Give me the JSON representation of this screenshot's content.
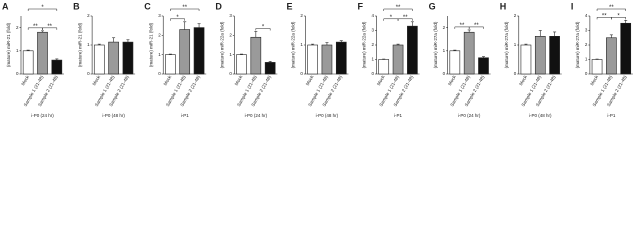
{
  "chart_data": [
    {
      "type": "bar",
      "panel": "A",
      "ylabel": "(mature) miR-21 (fold)",
      "xlabel": "i-P0 (24 hr)",
      "categories": [
        "Mock",
        "Sample 1 (21-48)",
        "Sample 2 (21-48)"
      ],
      "values": [
        1,
        1.8,
        0.6
      ],
      "errors": [
        0.03,
        0.06,
        0.05
      ],
      "colors": [
        "#ffffff",
        "#9a9a9a",
        "#111111"
      ],
      "ylim": [
        0,
        2.5
      ],
      "yticks": [
        0,
        1,
        2
      ],
      "annotations": [
        {
          "text": "*",
          "pair": [
            0,
            2
          ]
        },
        {
          "text": "**",
          "pair": [
            0,
            1
          ]
        },
        {
          "text": "**",
          "pair": [
            1,
            2
          ]
        }
      ]
    },
    {
      "type": "bar",
      "panel": "B",
      "ylabel": "(mature) miR-21 (fold)",
      "xlabel": "i-P0 (48 hr)",
      "categories": [
        "Mock",
        "Sample 1 (21-48)",
        "Sample 2 (21-48)"
      ],
      "values": [
        1,
        1.1,
        1.1
      ],
      "errors": [
        0.03,
        0.15,
        0.08
      ],
      "colors": [
        "#ffffff",
        "#9a9a9a",
        "#111111"
      ],
      "ylim": [
        0,
        2
      ],
      "yticks": [
        0,
        1,
        2
      ],
      "annotations": []
    },
    {
      "type": "bar",
      "panel": "C",
      "ylabel": "(mature) miR-21 (fold)",
      "xlabel": "i-P1",
      "categories": [
        "Mock",
        "Sample 1 (21-48)",
        "Sample 2 (21-48)"
      ],
      "values": [
        1,
        2.3,
        2.4
      ],
      "errors": [
        0.03,
        0.4,
        0.2
      ],
      "colors": [
        "#ffffff",
        "#9a9a9a",
        "#111111"
      ],
      "ylim": [
        0,
        3
      ],
      "yticks": [
        0,
        1,
        2,
        3
      ],
      "annotations": [
        {
          "text": "**",
          "pair": [
            0,
            2
          ]
        },
        {
          "text": "*",
          "pair": [
            0,
            1
          ]
        }
      ]
    },
    {
      "type": "bar",
      "panel": "D",
      "ylabel": "(mature) miR-22a (fold)",
      "xlabel": "i-P0 (24 hr)",
      "categories": [
        "Mock",
        "Sample 1 (21-48)",
        "Sample 2 (21-48)"
      ],
      "values": [
        1,
        1.9,
        0.6
      ],
      "errors": [
        0.03,
        0.3,
        0.05
      ],
      "colors": [
        "#ffffff",
        "#9a9a9a",
        "#111111"
      ],
      "ylim": [
        0,
        3
      ],
      "yticks": [
        0,
        1,
        2,
        3
      ],
      "annotations": [
        {
          "text": "*",
          "pair": [
            1,
            2
          ]
        }
      ]
    },
    {
      "type": "bar",
      "panel": "E",
      "ylabel": "(mature) miR-22a (fold)",
      "xlabel": "i-P0 (48 hr)",
      "categories": [
        "Mock",
        "Sample 1 (21-48)",
        "Sample 2 (21-48)"
      ],
      "values": [
        1,
        1,
        1.1
      ],
      "errors": [
        0.03,
        0.08,
        0.05
      ],
      "colors": [
        "#ffffff",
        "#9a9a9a",
        "#111111"
      ],
      "ylim": [
        0,
        2
      ],
      "yticks": [
        0,
        1,
        2
      ],
      "annotations": []
    },
    {
      "type": "bar",
      "panel": "F",
      "ylabel": "(mature) miR-22a (fold)",
      "xlabel": "i-P1",
      "categories": [
        "Mock",
        "Sample 1 (21-48)",
        "Sample 2 (21-48)"
      ],
      "values": [
        1,
        2,
        3.3
      ],
      "errors": [
        0.03,
        0.06,
        0.3
      ],
      "colors": [
        "#ffffff",
        "#9a9a9a",
        "#111111"
      ],
      "ylim": [
        0,
        4
      ],
      "yticks": [
        0,
        1,
        2,
        3,
        4
      ],
      "annotations": [
        {
          "text": "**",
          "pair": [
            0,
            2
          ]
        },
        {
          "text": "*",
          "pair": [
            0,
            1
          ]
        },
        {
          "text": "**",
          "pair": [
            1,
            2
          ]
        }
      ]
    },
    {
      "type": "bar",
      "panel": "G",
      "ylabel": "(mature) miR-27a (fold)",
      "xlabel": "i-P0 (24 hr)",
      "categories": [
        "Mock",
        "Sample 1 (21-48)",
        "Sample 2 (21-48)"
      ],
      "values": [
        1,
        1.8,
        0.7
      ],
      "errors": [
        0.03,
        0.1,
        0.05
      ],
      "colors": [
        "#ffffff",
        "#9a9a9a",
        "#111111"
      ],
      "ylim": [
        0,
        2.5
      ],
      "yticks": [
        0,
        1,
        2
      ],
      "annotations": [
        {
          "text": "**",
          "pair": [
            0,
            1
          ]
        },
        {
          "text": "**",
          "pair": [
            1,
            2
          ]
        }
      ]
    },
    {
      "type": "bar",
      "panel": "H",
      "ylabel": "(mature) miR-27a (fold)",
      "xlabel": "i-P0 (48 hr)",
      "categories": [
        "Mock",
        "Sample 1 (21-48)",
        "Sample 2 (21-48)"
      ],
      "values": [
        1,
        1.3,
        1.3
      ],
      "errors": [
        0.03,
        0.2,
        0.15
      ],
      "colors": [
        "#ffffff",
        "#9a9a9a",
        "#111111"
      ],
      "ylim": [
        0,
        2
      ],
      "yticks": [
        0,
        1,
        2
      ],
      "annotations": []
    },
    {
      "type": "bar",
      "panel": "I",
      "ylabel": "(mature) miR-27a (fold)",
      "xlabel": "i-P1",
      "categories": [
        "Mock",
        "Sample 1 (21-48)",
        "Sample 2 (21-48)"
      ],
      "values": [
        1,
        2.5,
        3.5
      ],
      "errors": [
        0.03,
        0.2,
        0.2
      ],
      "colors": [
        "#ffffff",
        "#9a9a9a",
        "#111111"
      ],
      "ylim": [
        0,
        4
      ],
      "yticks": [
        0,
        1,
        2,
        3,
        4
      ],
      "annotations": [
        {
          "text": "**",
          "pair": [
            0,
            2
          ]
        },
        {
          "text": "**",
          "pair": [
            0,
            1
          ]
        },
        {
          "text": "*",
          "pair": [
            1,
            2
          ]
        }
      ]
    }
  ]
}
